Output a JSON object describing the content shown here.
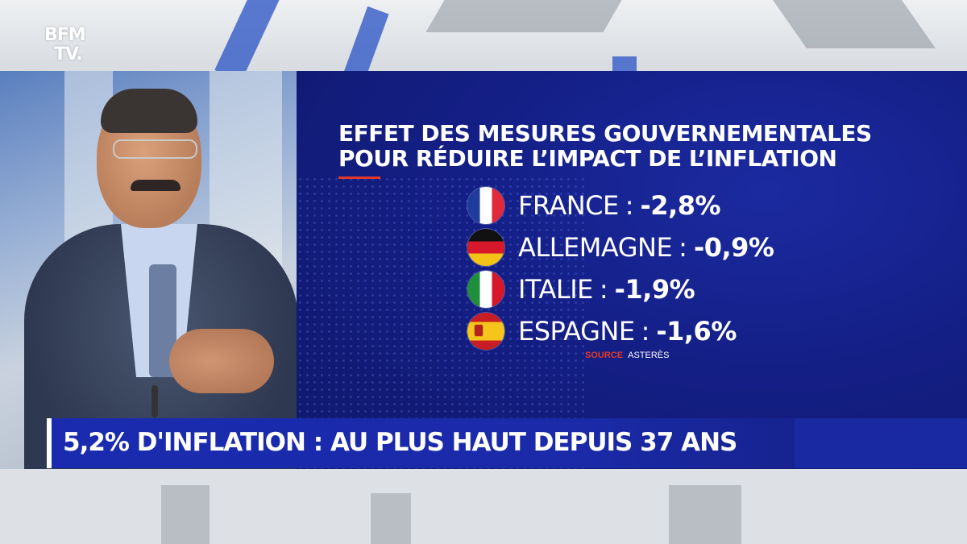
{
  "logo": {
    "line1": "BFM",
    "line2": "TV."
  },
  "infographic": {
    "title_line1": "EFFET DES MESURES GOUVERNEMENTALES",
    "title_line2": "POUR RÉDUIRE L’IMPACT DE L’INFLATION",
    "accent_color": "#e23a2a",
    "rows": [
      {
        "flag": "france-flag-icon",
        "country": "FRANCE",
        "separator": ":",
        "value": "-2,8%"
      },
      {
        "flag": "germany-flag-icon",
        "country": "ALLEMAGNE",
        "separator": ":",
        "value": "-0,9%"
      },
      {
        "flag": "italy-flag-icon",
        "country": "ITALIE",
        "separator": ":",
        "value": "-1,9%"
      },
      {
        "flag": "spain-flag-icon",
        "country": "ESPAGNE",
        "separator": ":",
        "value": "-1,6%"
      }
    ],
    "source_label": "SOURCE",
    "source_name": "ASTERÈS"
  },
  "banner": {
    "headline": "5,2% D'INFLATION : AU PLUS HAUT DEPUIS 37 ANS",
    "color": "#1a2bb0"
  }
}
